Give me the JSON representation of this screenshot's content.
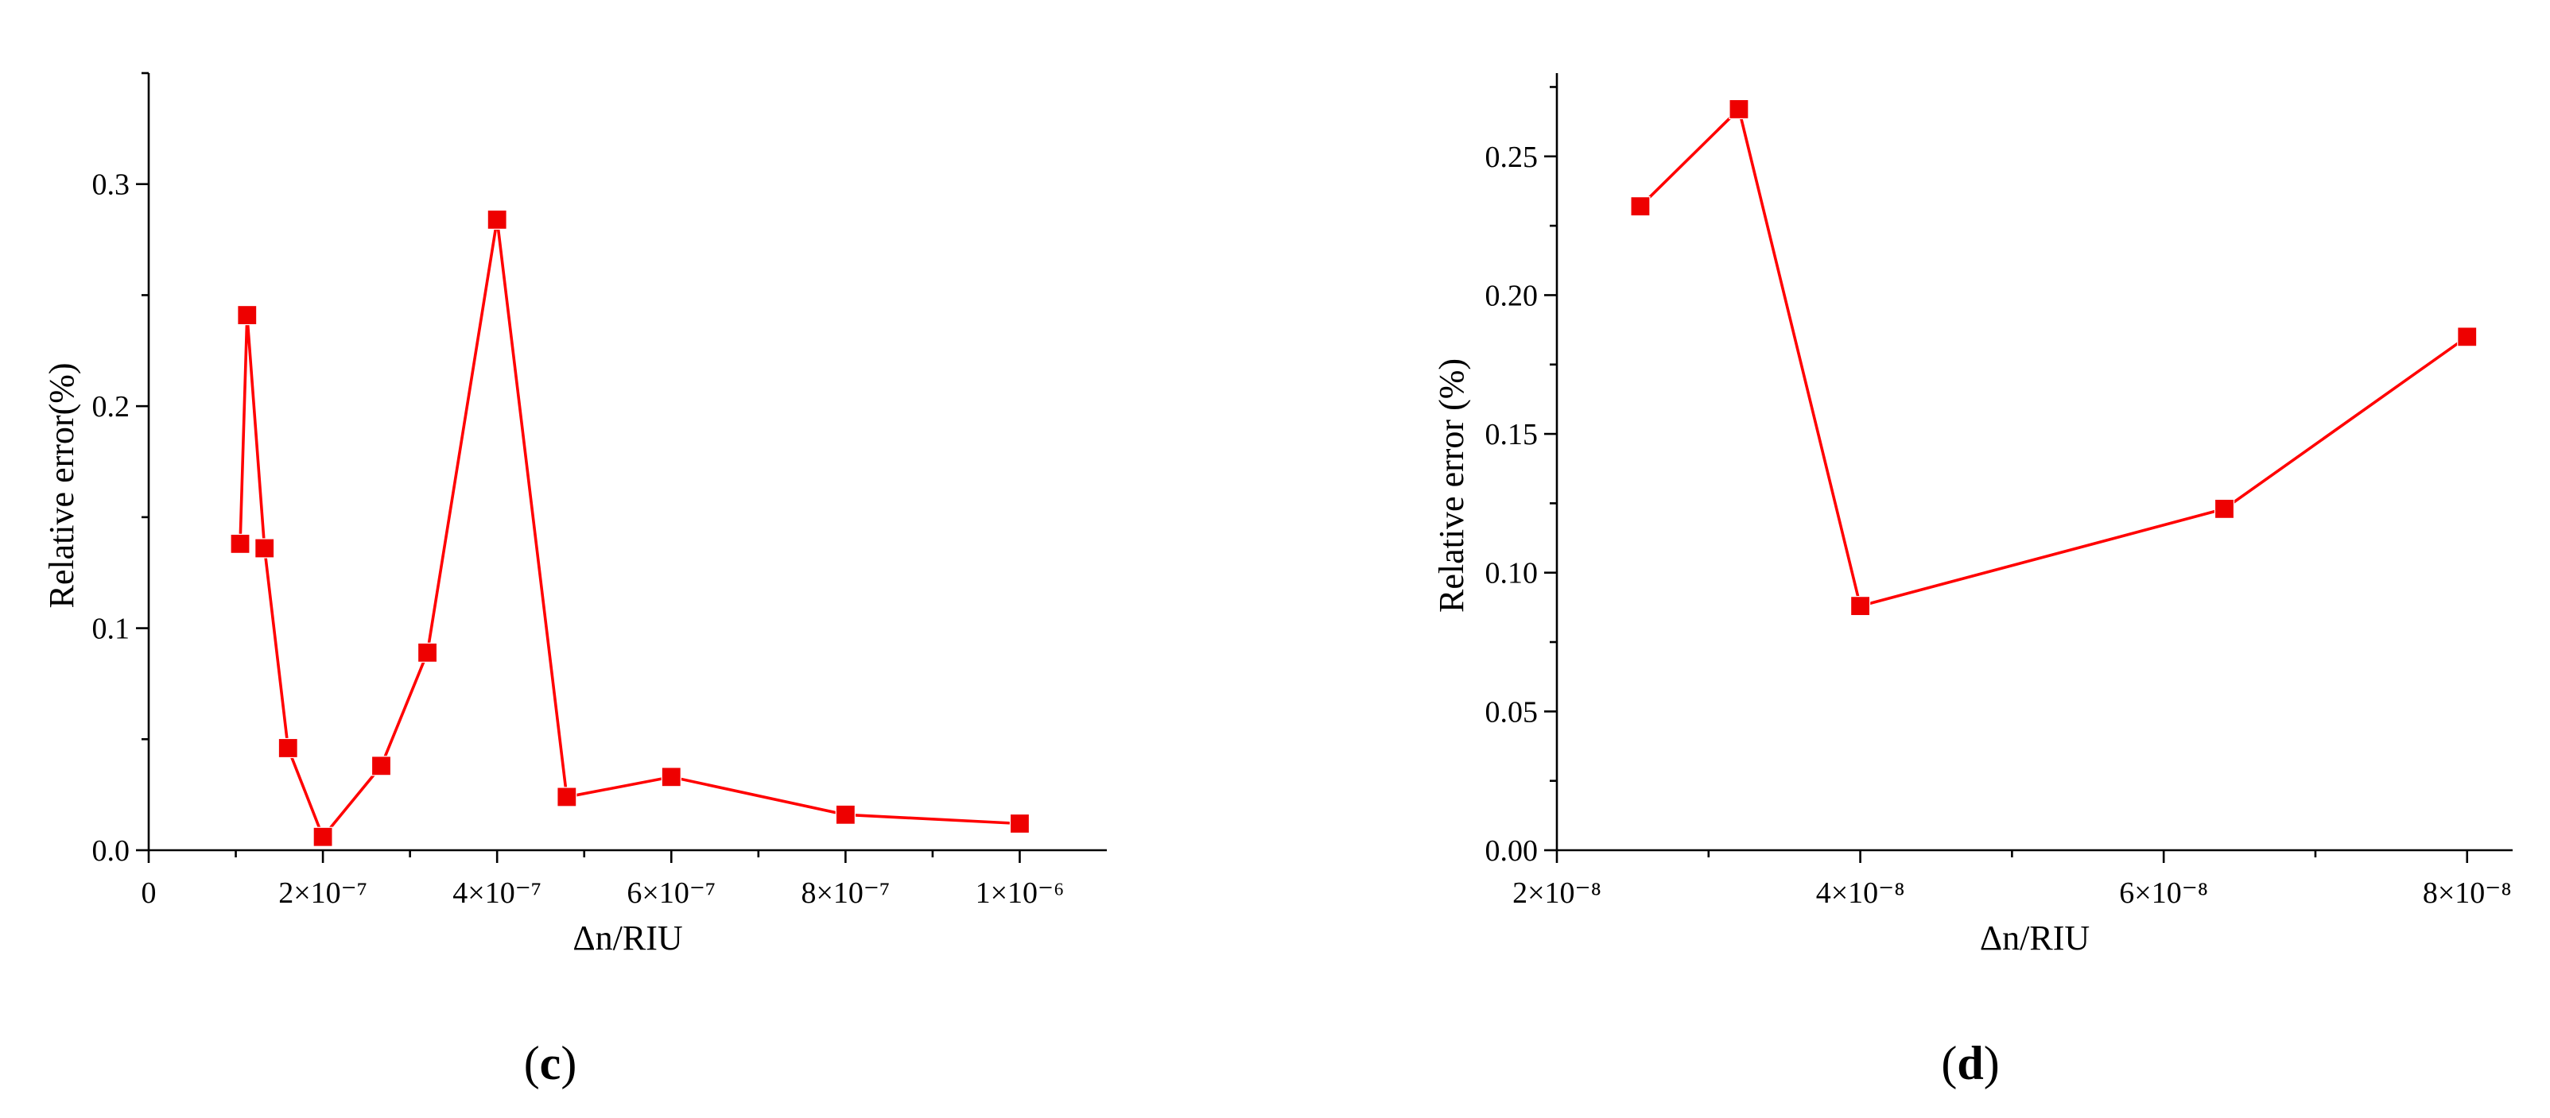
{
  "colors": {
    "series": "#ee0000",
    "line": "#ff0000",
    "axis": "#000000"
  },
  "chart_data": [
    {
      "type": "line",
      "panel_label": "c",
      "xlabel": "Δn/RIU",
      "ylabel": "Relative error(%)",
      "xlim": [
        0,
        1.1e-06
      ],
      "ylim": [
        0,
        0.35
      ],
      "x_ticks": [
        {
          "value": 0,
          "label": "0"
        },
        {
          "value": 2e-07,
          "label": "2×10⁻⁷"
        },
        {
          "value": 4e-07,
          "label": "4×10⁻⁷"
        },
        {
          "value": 6e-07,
          "label": "6×10⁻⁷"
        },
        {
          "value": 8e-07,
          "label": "8×10⁻⁷"
        },
        {
          "value": 1e-06,
          "label": "1×10⁻⁶"
        }
      ],
      "x_minor_ticks": [
        1e-07,
        3e-07,
        5e-07,
        7e-07,
        9e-07
      ],
      "y_ticks": [
        {
          "value": 0,
          "label": "0.0"
        },
        {
          "value": 0.1,
          "label": "0.1"
        },
        {
          "value": 0.2,
          "label": "0.2"
        },
        {
          "value": 0.3,
          "label": "0.3"
        }
      ],
      "y_minor_ticks": [
        0.05,
        0.15,
        0.25,
        0.35
      ],
      "grid": false,
      "marker": "square",
      "series": [
        {
          "x": [
            1.05e-07,
            1.13e-07,
            1.33e-07,
            1.6e-07,
            2e-07,
            2.67e-07,
            3.2e-07,
            4e-07,
            4.8e-07,
            6e-07,
            8e-07,
            1e-06
          ],
          "y": [
            0.138,
            0.241,
            0.136,
            0.046,
            0.006,
            0.038,
            0.089,
            0.284,
            0.024,
            0.033,
            0.016,
            0.012
          ]
        }
      ]
    },
    {
      "type": "line",
      "panel_label": "d",
      "xlabel": "Δn/RIU",
      "ylabel": "Relative error (%)",
      "xlim": [
        2e-08,
        8.3e-08
      ],
      "ylim": [
        0,
        0.28
      ],
      "x_ticks": [
        {
          "value": 2e-08,
          "label": "2×10⁻⁸"
        },
        {
          "value": 4e-08,
          "label": "4×10⁻⁸"
        },
        {
          "value": 6e-08,
          "label": "6×10⁻⁸"
        },
        {
          "value": 8e-08,
          "label": "8×10⁻⁸"
        }
      ],
      "x_minor_ticks": [
        3e-08,
        5e-08,
        7e-08
      ],
      "y_ticks": [
        {
          "value": 0,
          "label": "0.00"
        },
        {
          "value": 0.05,
          "label": "0.05"
        },
        {
          "value": 0.1,
          "label": "0.10"
        },
        {
          "value": 0.15,
          "label": "0.15"
        },
        {
          "value": 0.2,
          "label": "0.20"
        },
        {
          "value": 0.25,
          "label": "0.25"
        }
      ],
      "y_minor_ticks": [
        0.025,
        0.075,
        0.125,
        0.175,
        0.225,
        0.275
      ],
      "grid": false,
      "marker": "square",
      "series": [
        {
          "x": [
            2.55e-08,
            3.2e-08,
            4e-08,
            6.4e-08,
            8e-08
          ],
          "y": [
            0.232,
            0.267,
            0.088,
            0.123,
            0.185
          ]
        }
      ]
    }
  ]
}
